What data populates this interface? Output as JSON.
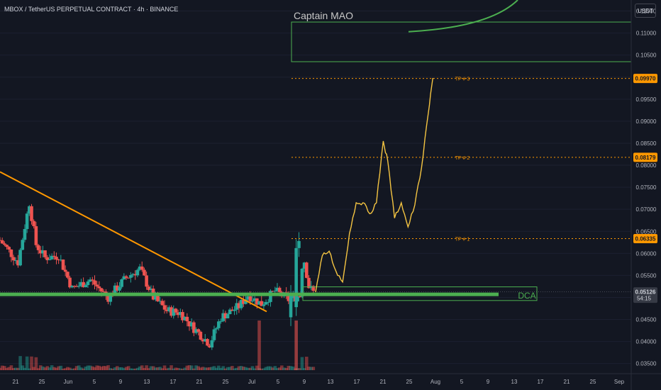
{
  "header": {
    "symbol_title": "MBOX / TetherUS PERPETUAL CONTRACT · 4h · BINANCE",
    "currency": "USDT"
  },
  "colors": {
    "background": "#131722",
    "up_candle": "#26a69a",
    "down_candle": "#ef5350",
    "projection": "#f5c542",
    "trendline": "#ff9800",
    "support_zone": "#4caf50",
    "target_arc": "#4caf50",
    "tp_line": "#ff9800",
    "current_price_label": "#363a45"
  },
  "chart_data": {
    "type": "candlestick",
    "y_axis": {
      "ticks": [
        "0.11500",
        "0.11000",
        "0.10500",
        "0.10000",
        "0.09500",
        "0.09000",
        "0.08500",
        "0.08000",
        "0.07500",
        "0.07000",
        "0.06500",
        "0.06000",
        "0.05500",
        "0.05000",
        "0.04500",
        "0.04000",
        "0.03500"
      ],
      "range": [
        0.0335,
        0.1175
      ]
    },
    "x_axis": {
      "ticks": [
        "21",
        "25",
        "Jun",
        "5",
        "9",
        "13",
        "17",
        "21",
        "25",
        "Jul",
        "5",
        "9",
        "13",
        "17",
        "21",
        "25",
        "Aug",
        "5",
        "9",
        "13",
        "17",
        "21",
        "25",
        "Sep"
      ]
    },
    "price_labels": [
      {
        "value": "0.09970",
        "color": "#ff9800"
      },
      {
        "value": "0.08179",
        "color": "#ff9800"
      },
      {
        "value": "0.06335",
        "color": "#ff9800"
      },
      {
        "value": "0.05126",
        "countdown": "54:15",
        "color": "#363a45"
      }
    ],
    "take_profit_levels": [
      {
        "label": "TP # 3",
        "price": 0.0997
      },
      {
        "label": "TP # 2",
        "price": 0.08179
      },
      {
        "label": "TP # 1",
        "price": 0.06335
      }
    ],
    "annotations": {
      "target_box_label": "Captain MAO",
      "target_box_range": [
        0.1035,
        0.1125
      ],
      "support_zone_label": "DCA",
      "support_zone_price": 0.0507,
      "support_box_range": [
        0.0493,
        0.0524
      ]
    },
    "anchors": [
      {
        "x": 0.0,
        "y": 0.063
      },
      {
        "x": 4.0,
        "y": 0.058
      },
      {
        "x": 6.5,
        "y": 0.0715
      },
      {
        "x": 8.0,
        "y": 0.062
      },
      {
        "x": 10.0,
        "y": 0.059
      },
      {
        "x": 13.0,
        "y": 0.0595
      },
      {
        "x": 16.0,
        "y": 0.052
      },
      {
        "x": 20.0,
        "y": 0.054
      },
      {
        "x": 24.0,
        "y": 0.05
      },
      {
        "x": 28.0,
        "y": 0.0545
      },
      {
        "x": 31.0,
        "y": 0.0565
      },
      {
        "x": 34.0,
        "y": 0.05
      },
      {
        "x": 37.0,
        "y": 0.047
      },
      {
        "x": 40.0,
        "y": 0.0465
      },
      {
        "x": 43.0,
        "y": 0.043
      },
      {
        "x": 46.5,
        "y": 0.0395
      },
      {
        "x": 49.0,
        "y": 0.0455
      },
      {
        "x": 53.0,
        "y": 0.048
      },
      {
        "x": 55.0,
        "y": 0.0505
      },
      {
        "x": 58.0,
        "y": 0.0485
      },
      {
        "x": 61.0,
        "y": 0.0515
      },
      {
        "x": 64.0,
        "y": 0.0495
      },
      {
        "x": 66.5,
        "y": 0.0505
      },
      {
        "x": 67.2,
        "y": 0.06
      },
      {
        "x": 68.5,
        "y": 0.0525
      },
      {
        "x": 69.5,
        "y": 0.0512
      }
    ],
    "projection_path": [
      {
        "x": 70.0,
        "y": 0.0512
      },
      {
        "x": 71.5,
        "y": 0.0595
      },
      {
        "x": 73.0,
        "y": 0.0605
      },
      {
        "x": 74.5,
        "y": 0.056
      },
      {
        "x": 76.0,
        "y": 0.0535
      },
      {
        "x": 77.5,
        "y": 0.0645
      },
      {
        "x": 79.0,
        "y": 0.0715
      },
      {
        "x": 80.5,
        "y": 0.0715
      },
      {
        "x": 82.0,
        "y": 0.069
      },
      {
        "x": 83.5,
        "y": 0.0715
      },
      {
        "x": 85.0,
        "y": 0.0855
      },
      {
        "x": 86.0,
        "y": 0.081
      },
      {
        "x": 87.5,
        "y": 0.068
      },
      {
        "x": 89.0,
        "y": 0.0715
      },
      {
        "x": 90.5,
        "y": 0.066
      },
      {
        "x": 92.0,
        "y": 0.071
      },
      {
        "x": 93.5,
        "y": 0.0795
      },
      {
        "x": 95.0,
        "y": 0.0918
      },
      {
        "x": 96.0,
        "y": 0.0998
      }
    ],
    "bar_count": 70,
    "x_span": [
      0,
      140
    ]
  }
}
